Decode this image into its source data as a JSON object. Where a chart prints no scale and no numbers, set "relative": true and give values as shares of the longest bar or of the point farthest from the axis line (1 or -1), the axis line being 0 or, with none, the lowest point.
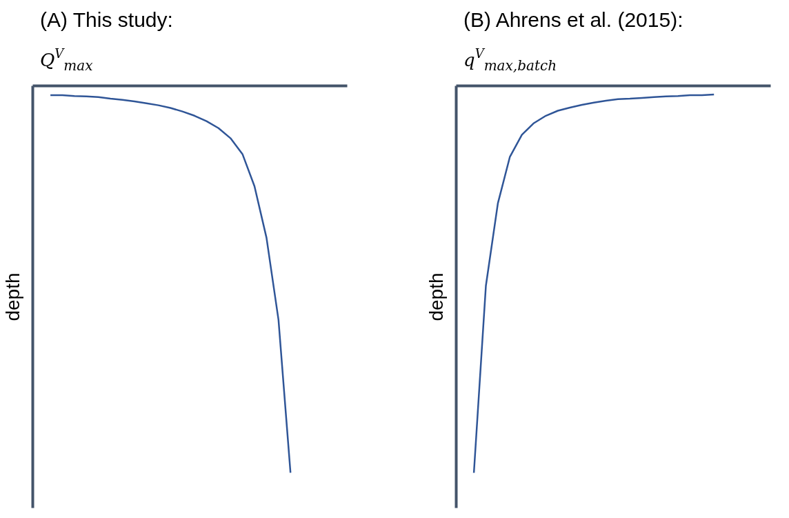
{
  "chart_data": [
    {
      "type": "line",
      "title": "(A) This study:",
      "xlabel": "Q$^{V}$$_{max}$",
      "ylabel": "depth",
      "relative": true,
      "categories": [
        null,
        null,
        null,
        null,
        null,
        null,
        null,
        null,
        null,
        null,
        null,
        null,
        null,
        null,
        null,
        null,
        null,
        null,
        null,
        null,
        null
      ],
      "series": [
        {
          "color": "#2f5597",
          "values": [
            -0.025,
            -0.025,
            -0.027,
            -0.028,
            -0.03,
            -0.034,
            -0.037,
            -0.041,
            -0.046,
            -0.051,
            -0.058,
            -0.067,
            -0.078,
            -0.092,
            -0.11,
            -0.136,
            -0.177,
            -0.26,
            -0.393,
            -0.605,
            -1
          ]
        }
      ]
    },
    {
      "type": "line",
      "title": "(B) Ahrens et al. (2015):",
      "xlabel": "q$^{V}$$_{max,batch}$",
      "ylabel": "depth",
      "relative": true,
      "categories": [
        null,
        null,
        null,
        null,
        null,
        null,
        null,
        null,
        null,
        null,
        null,
        null,
        null,
        null,
        null,
        null,
        null,
        null,
        null,
        null,
        null
      ],
      "series": [
        {
          "color": "#2f5597",
          "values": [
            -1,
            -0.517,
            -0.304,
            -0.184,
            -0.127,
            -0.097,
            -0.078,
            -0.065,
            -0.057,
            -0.05,
            -0.044,
            -0.039,
            -0.035,
            -0.034,
            -0.032,
            -0.03,
            -0.028,
            -0.027,
            -0.025,
            -0.025,
            -0.023
          ]
        }
      ]
    }
  ]
}
